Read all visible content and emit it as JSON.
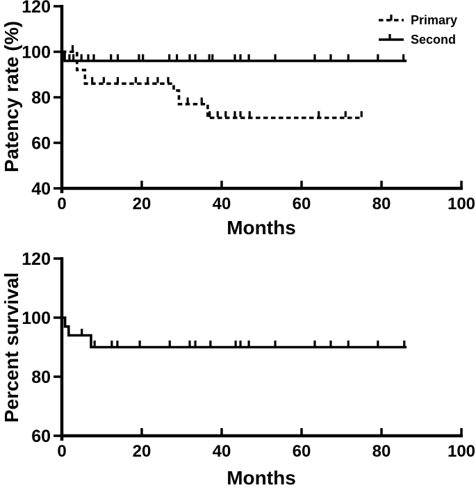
{
  "figure": {
    "background": "#ffffff",
    "ink_color": "#000000",
    "style": "kaplan-meier step curves with censor tick marks, all text bold black on white"
  },
  "chart_data": [
    {
      "type": "line",
      "subtype": "kaplan-meier-step",
      "title": "",
      "xlabel": "Months",
      "ylabel": "Patency rate (%)",
      "xlim": [
        0,
        100
      ],
      "ylim": [
        40,
        120
      ],
      "xticks": [
        0,
        20,
        40,
        60,
        80,
        100
      ],
      "yticks": [
        40,
        60,
        80,
        100,
        120
      ],
      "grid": false,
      "legend_position": "top-right",
      "series": [
        {
          "name": "Primary",
          "style": "dashed",
          "steps": [
            [
              0,
              100
            ],
            [
              3.8,
              92
            ],
            [
              5.8,
              86
            ],
            [
              28,
              83
            ],
            [
              29.3,
              77
            ],
            [
              36.5,
              71
            ]
          ],
          "end_month": 75.3,
          "censor_ticks": [
            [
              2.7,
              100
            ],
            [
              7.6,
              86
            ],
            [
              10.5,
              86
            ],
            [
              14,
              86
            ],
            [
              18.5,
              86
            ],
            [
              21.5,
              86
            ],
            [
              24,
              86
            ],
            [
              26.6,
              86
            ],
            [
              31.5,
              77
            ],
            [
              35,
              77
            ],
            [
              37,
              71
            ],
            [
              39,
              71
            ],
            [
              41,
              71
            ],
            [
              43.3,
              71
            ],
            [
              44.7,
              71
            ],
            [
              47,
              71
            ],
            [
              64.3,
              71
            ],
            [
              71,
              71
            ],
            [
              75,
              71
            ]
          ]
        },
        {
          "name": "Second",
          "style": "solid",
          "steps": [
            [
              0,
              100
            ],
            [
              0.7,
              96
            ]
          ],
          "end_month": 86.3,
          "censor_ticks": [
            [
              1.9,
              96
            ],
            [
              2.9,
              96
            ],
            [
              4.9,
              96
            ],
            [
              6.6,
              96
            ],
            [
              8,
              96
            ],
            [
              12.3,
              96
            ],
            [
              14,
              96
            ],
            [
              19.3,
              96
            ],
            [
              20.3,
              96
            ],
            [
              26.9,
              96
            ],
            [
              28.8,
              96
            ],
            [
              32,
              96
            ],
            [
              33.4,
              96
            ],
            [
              36.9,
              96
            ],
            [
              37.7,
              96
            ],
            [
              43.3,
              96
            ],
            [
              44.7,
              96
            ],
            [
              46.8,
              96
            ],
            [
              53.4,
              96
            ],
            [
              63.3,
              96
            ],
            [
              67.3,
              96
            ],
            [
              71.7,
              96
            ],
            [
              79.1,
              96
            ],
            [
              85.5,
              96
            ]
          ]
        }
      ]
    },
    {
      "type": "line",
      "subtype": "kaplan-meier-step",
      "title": "",
      "xlabel": "Months",
      "ylabel": "Percent survival",
      "xlim": [
        0,
        100
      ],
      "ylim": [
        60,
        120
      ],
      "xticks": [
        0,
        20,
        40,
        60,
        80,
        100
      ],
      "yticks": [
        60,
        80,
        100,
        120
      ],
      "grid": false,
      "legend_position": "none",
      "series": [
        {
          "name": "Survival",
          "style": "solid",
          "steps": [
            [
              0,
              100
            ],
            [
              0.8,
              97
            ],
            [
              1.7,
              94
            ],
            [
              7.3,
              90
            ]
          ],
          "end_month": 86.3,
          "censor_ticks": [
            [
              5,
              94
            ],
            [
              8.2,
              90
            ],
            [
              12.5,
              90
            ],
            [
              13.9,
              90
            ],
            [
              19.5,
              90
            ],
            [
              27,
              90
            ],
            [
              32,
              90
            ],
            [
              33.4,
              90
            ],
            [
              37.2,
              90
            ],
            [
              43.5,
              90
            ],
            [
              44.7,
              90
            ],
            [
              46.8,
              90
            ],
            [
              53.4,
              90
            ],
            [
              63.3,
              90
            ],
            [
              67.3,
              90
            ],
            [
              71.7,
              90
            ],
            [
              79.1,
              90
            ],
            [
              85.7,
              90
            ]
          ]
        }
      ]
    }
  ]
}
